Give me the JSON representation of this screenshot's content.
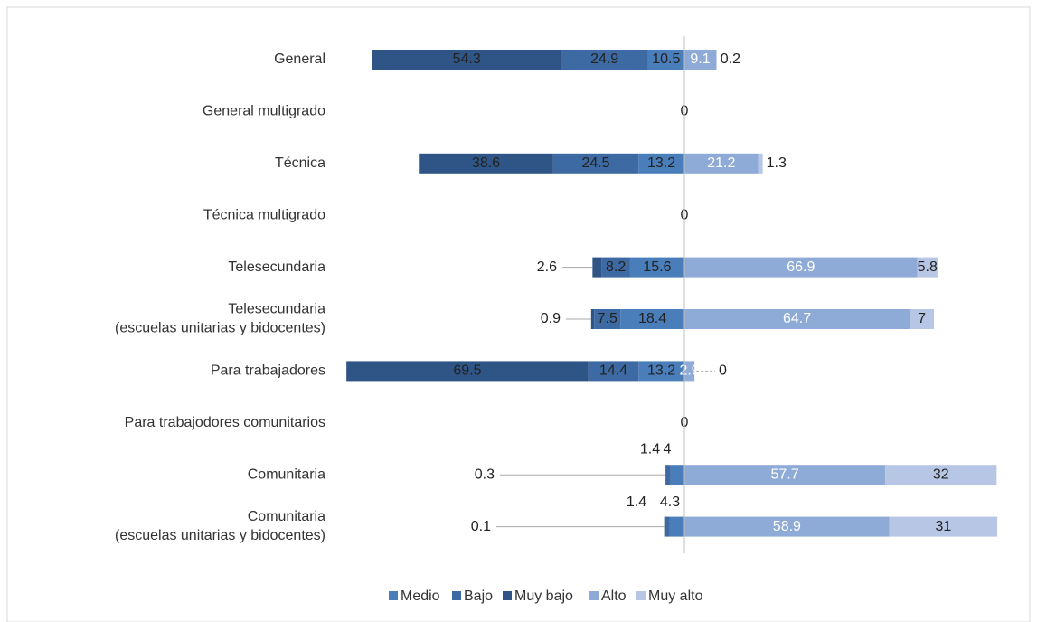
{
  "chart_data": {
    "type": "diverging-bar",
    "categories": [
      "General",
      "General multigrado",
      "Técnica",
      "Técnica multigrado",
      "Telesecundaria",
      "Telesecundaria\n(escuelas unitarias y bidocentes)",
      "Para trabajadores",
      "Para trabajodores comunitarios",
      "Comunitaria",
      "Comunitaria\n(escuelas unitarias y bidocentes)"
    ],
    "series": [
      {
        "name": "Medio",
        "color": "#4a7ebb",
        "values": [
          10.5,
          0.0,
          13.2,
          0.0,
          15.6,
          18.4,
          13.2,
          0.0,
          4.0,
          4.3
        ]
      },
      {
        "name": "Bajo",
        "color": "#3d6aa2",
        "values": [
          24.9,
          0.0,
          24.5,
          0.0,
          8.2,
          7.5,
          14.4,
          0.0,
          1.4,
          1.4
        ]
      },
      {
        "name": "Muy bajo",
        "color": "#2f5587",
        "values": [
          54.3,
          0.0,
          38.6,
          0.0,
          2.6,
          0.9,
          69.5,
          0.0,
          0.3,
          0.1
        ]
      },
      {
        "name": "Alto",
        "color": "#8eaad6",
        "values": [
          9.1,
          0.0,
          21.2,
          0.0,
          66.9,
          64.7,
          2.9,
          0.0,
          57.7,
          58.9
        ]
      },
      {
        "name": "Muy alto",
        "color": "#b7c6e4",
        "values": [
          0.2,
          0.0,
          1.3,
          0.0,
          5.8,
          7.0,
          0.0,
          0.0,
          32.0,
          31.0
        ]
      }
    ],
    "legend": "bottom"
  }
}
